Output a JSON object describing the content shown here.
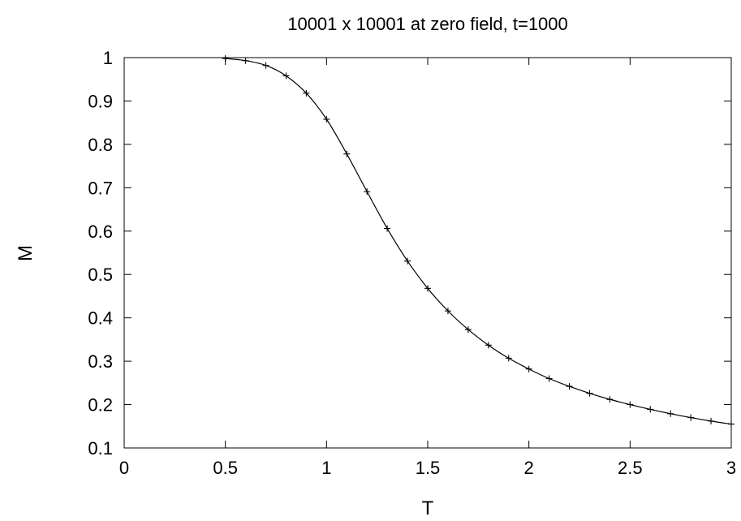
{
  "chart_data": {
    "type": "line",
    "title": "10001 x 10001 at zero field, t=1000",
    "xlabel": "T",
    "ylabel": "M",
    "xlim": [
      0,
      3
    ],
    "ylim": [
      0.1,
      1
    ],
    "xticks": [
      0,
      0.5,
      1,
      1.5,
      2,
      2.5,
      3
    ],
    "xtick_labels": [
      "0",
      "0.5",
      "1",
      "1.5",
      "2",
      "2.5",
      "3"
    ],
    "yticks": [
      0.1,
      0.2,
      0.3,
      0.4,
      0.5,
      0.6,
      0.7,
      0.8,
      0.9,
      1
    ],
    "ytick_labels": [
      "0.1",
      "0.2",
      "0.3",
      "0.4",
      "0.5",
      "0.6",
      "0.7",
      "0.8",
      "0.9",
      "1"
    ],
    "grid": false,
    "series": [
      {
        "marker": "plus",
        "line": "solid",
        "color": "#000000",
        "x": [
          0.5,
          0.6,
          0.7,
          0.8,
          0.9,
          1.0,
          1.1,
          1.2,
          1.3,
          1.4,
          1.5,
          1.6,
          1.7,
          1.8,
          1.9,
          2.0,
          2.1,
          2.2,
          2.3,
          2.4,
          2.5,
          2.6,
          2.7,
          2.8,
          2.9,
          3.0
        ],
        "y": [
          0.998,
          0.993,
          0.982,
          0.958,
          0.918,
          0.858,
          0.778,
          0.691,
          0.606,
          0.531,
          0.468,
          0.416,
          0.373,
          0.337,
          0.307,
          0.282,
          0.26,
          0.242,
          0.226,
          0.212,
          0.2,
          0.189,
          0.179,
          0.17,
          0.162,
          0.155
        ]
      }
    ]
  }
}
